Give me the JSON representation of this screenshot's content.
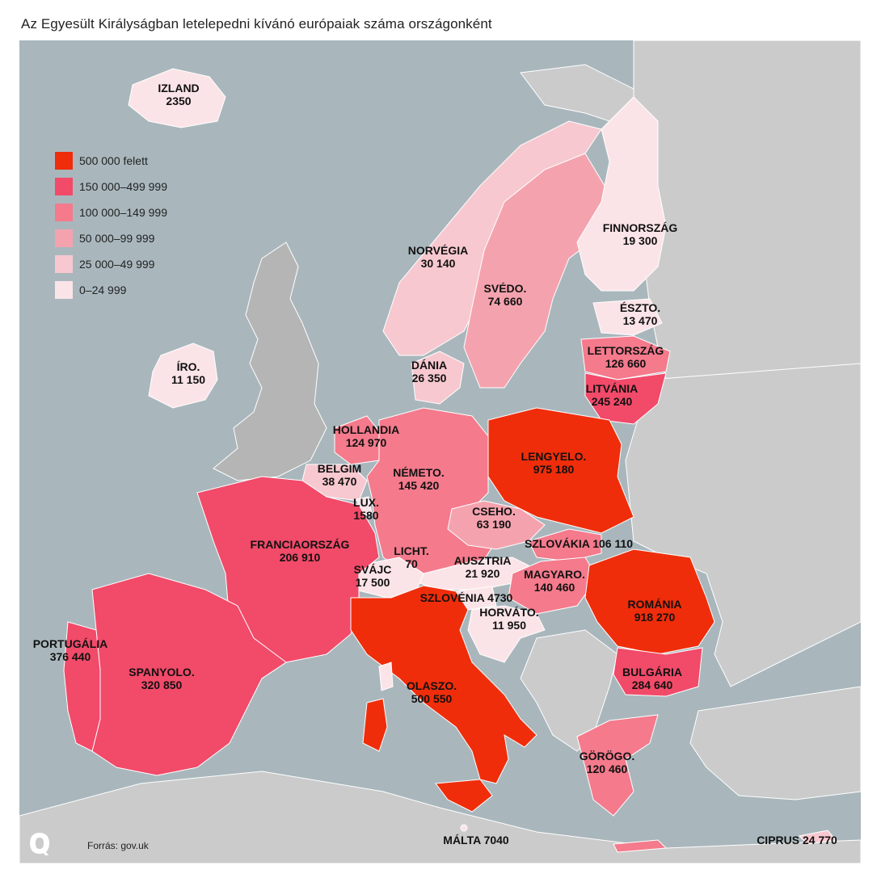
{
  "title": "Az Egyesült Királyságban letelepedni kívánó európaiak száma országonként",
  "legend": [
    {
      "label": "500 000 felett",
      "color": "#f02d0a"
    },
    {
      "label": "150 000–499 999",
      "color": "#f24a69"
    },
    {
      "label": "100 000–149 999",
      "color": "#f47a8c"
    },
    {
      "label": "50 000–99 999",
      "color": "#f4a3ae"
    },
    {
      "label": "25 000–49 999",
      "color": "#f7c8cf"
    },
    {
      "label": "0–24 999",
      "color": "#fbe4e7"
    }
  ],
  "colors": {
    "sea": "#a9b7bd",
    "non_eu": "#cbcbcb",
    "uk": "#b5b5b5"
  },
  "countries": [
    {
      "name": "IZLAND",
      "value": "2350"
    },
    {
      "name": "NORVÉGIA",
      "value": "30 140"
    },
    {
      "name": "SVÉDO.",
      "value": "74 660"
    },
    {
      "name": "FINNORSZÁG",
      "value": "19 300"
    },
    {
      "name": "ÉSZTO.",
      "value": "13 470"
    },
    {
      "name": "LETTORSZÁG",
      "value": "126 660"
    },
    {
      "name": "LITVÁNIA",
      "value": "245 240"
    },
    {
      "name": "DÁNIA",
      "value": "26 350"
    },
    {
      "name": "ÍRO.",
      "value": "11 150"
    },
    {
      "name": "HOLLANDIA",
      "value": "124 970"
    },
    {
      "name": "BELGIM",
      "value": "38 470"
    },
    {
      "name": "NÉMETO.",
      "value": "145 420"
    },
    {
      "name": "LENGYELO.",
      "value": "975 180"
    },
    {
      "name": "LUX.",
      "value": "1580"
    },
    {
      "name": "CSEHO.",
      "value": "63 190"
    },
    {
      "name": "SZLOVÁKIA",
      "value": "106 110"
    },
    {
      "name": "FRANCIAORSZÁG",
      "value": "206 910"
    },
    {
      "name": "LICHT.",
      "value": "70"
    },
    {
      "name": "AUSZTRIA",
      "value": "21 920"
    },
    {
      "name": "SVÁJC",
      "value": "17 500"
    },
    {
      "name": "MAGYARO.",
      "value": "140 460"
    },
    {
      "name": "SZLOVÉNIA",
      "value": "4730"
    },
    {
      "name": "ROMÁNIA",
      "value": "918 270"
    },
    {
      "name": "HORVÁTO.",
      "value": "11 950"
    },
    {
      "name": "PORTUGÁLIA",
      "value": "376 440"
    },
    {
      "name": "SPANYOLO.",
      "value": "320 850"
    },
    {
      "name": "BULGÁRIA",
      "value": "284 640"
    },
    {
      "name": "OLASZO.",
      "value": "500 550"
    },
    {
      "name": "GÖRÖGO.",
      "value": "120 460"
    },
    {
      "name": "MÁLTA",
      "value": "7040"
    },
    {
      "name": "CIPRUS",
      "value": "24 770"
    }
  ],
  "source": "Forrás: gov.uk",
  "logo": {
    "icon": "q-logo-icon"
  }
}
